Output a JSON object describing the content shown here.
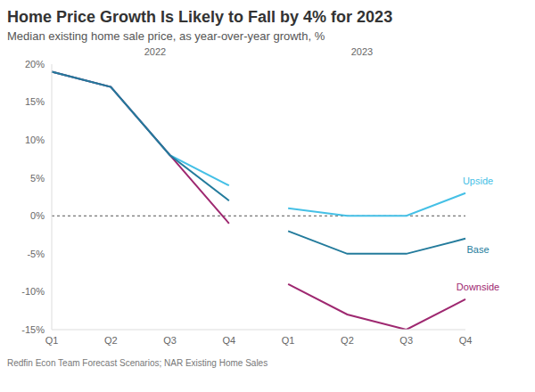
{
  "chart_data": {
    "type": "line",
    "title": "Home Price Growth Is Likely to Fall by 4% for 2023",
    "subtitle": "Median existing home sale price, as year-over-year growth, %",
    "source": "Redfin Econ Team Forecast Scenarios; NAR Existing Home Sales",
    "categories": [
      "Q1",
      "Q2",
      "Q3",
      "Q4",
      "Q1",
      "Q2",
      "Q3",
      "Q4"
    ],
    "years": [
      "2022",
      "2022",
      "2022",
      "2022",
      "2023",
      "2023",
      "2023",
      "2023"
    ],
    "series": [
      {
        "name": "Upside",
        "color": "#45c0e6",
        "values": [
          19,
          17,
          8,
          4,
          1,
          0,
          0,
          3
        ]
      },
      {
        "name": "Downside",
        "color": "#9e2870",
        "values": [
          19,
          17,
          8,
          -1,
          -9,
          -13,
          -15,
          -11
        ]
      },
      {
        "name": "Base",
        "color": "#237b9c",
        "values": [
          19,
          17,
          8,
          2,
          -2,
          -5,
          -5,
          -3
        ]
      }
    ],
    "ylim": [
      -15,
      20
    ],
    "yticks": [
      {
        "value": -15,
        "label": "-15%"
      },
      {
        "value": -10,
        "label": "-10%"
      },
      {
        "value": -5,
        "label": "-5%"
      },
      {
        "value": 0,
        "label": "0%"
      },
      {
        "value": 5,
        "label": "5%"
      },
      {
        "value": 10,
        "label": "10%"
      },
      {
        "value": 15,
        "label": "15%"
      },
      {
        "value": 20,
        "label": "20%"
      }
    ],
    "reference_y": 0,
    "grid": false
  }
}
